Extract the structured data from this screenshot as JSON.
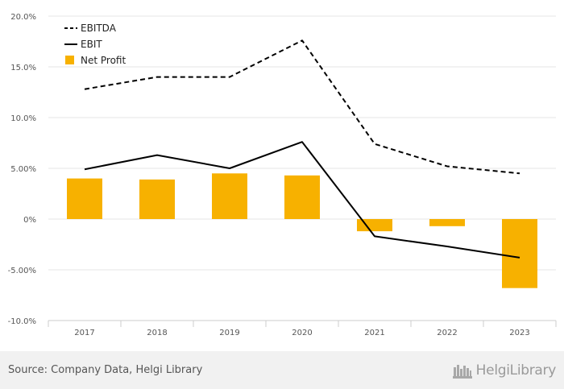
{
  "chart_data": {
    "type": "bar",
    "categories": [
      "2017",
      "2018",
      "2019",
      "2020",
      "2021",
      "2022",
      "2023"
    ],
    "series": [
      {
        "name": "EBITDA",
        "type": "line",
        "style": "dashed",
        "color": "#000000",
        "values": [
          12.8,
          14.0,
          14.0,
          17.6,
          7.4,
          5.2,
          4.5
        ]
      },
      {
        "name": "EBIT",
        "type": "line",
        "style": "solid",
        "color": "#000000",
        "values": [
          4.9,
          6.3,
          5.0,
          7.6,
          -1.7,
          -2.7,
          -3.8
        ]
      },
      {
        "name": "Net Profit",
        "type": "bar",
        "color": "#f7b100",
        "values": [
          4.0,
          3.9,
          4.5,
          4.3,
          -1.2,
          -0.7,
          -6.8
        ]
      }
    ],
    "ylim": [
      -10,
      20
    ],
    "yticks": [
      -10,
      -5,
      0,
      5,
      10,
      15,
      20
    ],
    "ytick_labels": [
      "-10.0%",
      "-5.00%",
      "0%",
      "5.00%",
      "10.0%",
      "15.0%",
      "20.0%"
    ],
    "grid": true,
    "legend_position": "top-left"
  },
  "legend": {
    "ebitda": "EBITDA",
    "ebit": "EBIT",
    "net_profit": "Net Profit"
  },
  "footer": {
    "source": "Source: Company Data, Helgi Library",
    "brand": "HelgiLibrary"
  }
}
